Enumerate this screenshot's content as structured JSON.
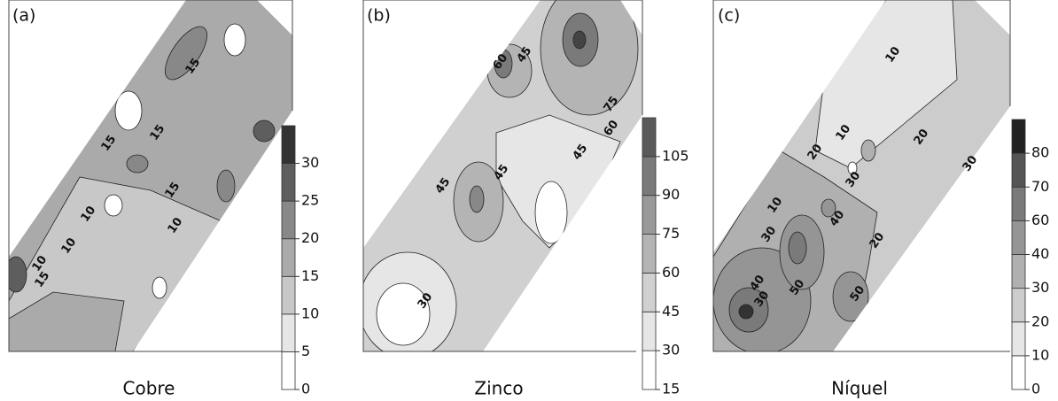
{
  "chart_data": [
    {
      "type": "contour",
      "label": "(a)",
      "title": "Cobre",
      "colorbar_ticks": [
        0,
        5,
        10,
        15,
        20,
        25,
        30
      ],
      "colors": [
        "#ffffff",
        "#e6e6e6",
        "#c8c8c8",
        "#aaaaaa",
        "#888888",
        "#5e5e5e",
        "#333333"
      ],
      "contour_labels": [
        15,
        15,
        15,
        15,
        10,
        10,
        10,
        10,
        15
      ]
    },
    {
      "type": "contour",
      "label": "(b)",
      "title": "Zinco",
      "colorbar_ticks": [
        15,
        30,
        45,
        60,
        75,
        90,
        105
      ],
      "colors": [
        "#ffffff",
        "#e6e6e6",
        "#d0d0d0",
        "#b4b4b4",
        "#999999",
        "#7a7a7a",
        "#5a5a5a"
      ],
      "contour_labels": [
        60,
        45,
        75,
        60,
        45,
        45,
        45,
        30
      ]
    },
    {
      "type": "contour",
      "label": "(c)",
      "title": "Níquel",
      "colorbar_ticks": [
        0,
        10,
        20,
        30,
        40,
        60,
        70,
        80
      ],
      "colors": [
        "#ffffff",
        "#e6e6e6",
        "#cccccc",
        "#b0b0b0",
        "#959595",
        "#7a7a7a",
        "#555555",
        "#222222"
      ],
      "contour_labels": [
        10,
        10,
        20,
        20,
        30,
        30,
        40,
        10,
        30,
        20,
        40,
        50,
        50,
        30
      ]
    }
  ]
}
